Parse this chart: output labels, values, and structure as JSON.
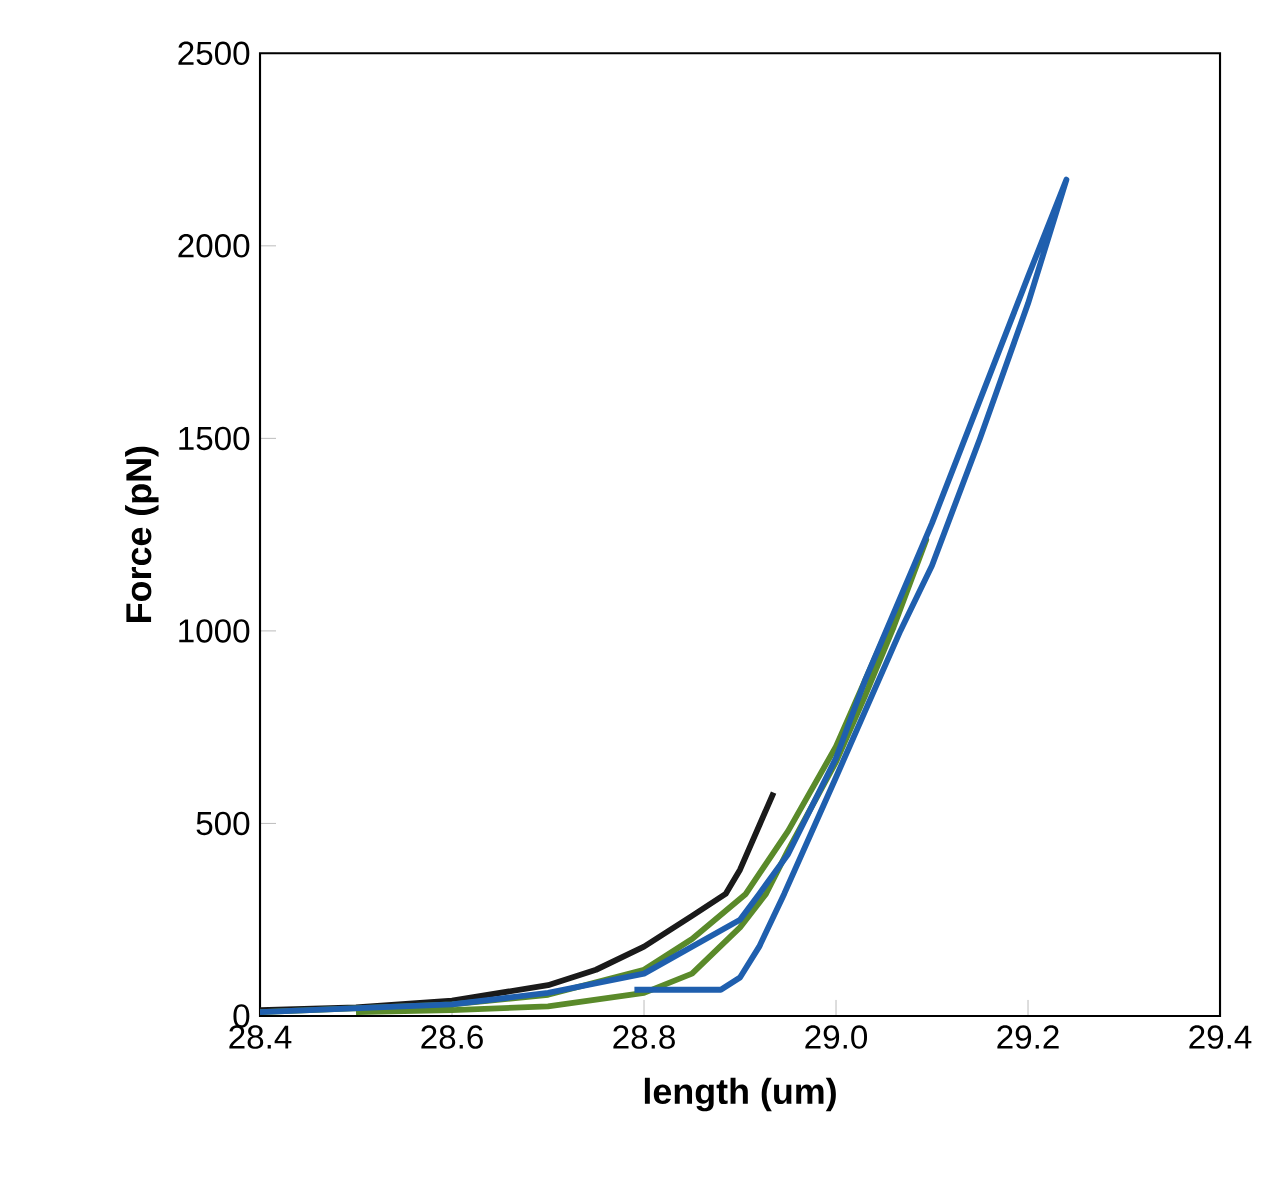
{
  "chart_data": {
    "type": "line",
    "xlabel": "length (um)",
    "ylabel": "Force (pN)",
    "xlim": [
      28.4,
      29.4
    ],
    "ylim": [
      0,
      2500
    ],
    "xticks": [
      {
        "value": 28.4,
        "label": "28.4"
      },
      {
        "value": 28.6,
        "label": "28.6"
      },
      {
        "value": 28.8,
        "label": "28.8"
      },
      {
        "value": 29.0,
        "label": "29.0"
      },
      {
        "value": 29.2,
        "label": "29.2"
      },
      {
        "value": 29.4,
        "label": "29.4"
      }
    ],
    "yticks": [
      0,
      500,
      1000,
      1500,
      2000,
      2500
    ],
    "series": [
      {
        "color": "#1a1a1a",
        "x": [
          28.4,
          28.5,
          28.6,
          28.7,
          28.75,
          28.8,
          28.85,
          28.885,
          28.9,
          28.935
        ],
        "values": [
          15,
          22,
          40,
          80,
          120,
          180,
          260,
          317,
          380,
          580
        ]
      },
      {
        "color": "#5a8a2a",
        "x": [
          28.4,
          28.6,
          28.7,
          28.8,
          28.85,
          28.906,
          28.95,
          29.0,
          29.03,
          29.06,
          29.094,
          29.06,
          29.03,
          29.0,
          28.95,
          28.927,
          28.9,
          28.85,
          28.8,
          28.7,
          28.6,
          28.5
        ],
        "values": [
          10,
          30,
          55,
          120,
          200,
          317,
          480,
          700,
          870,
          1040,
          1237,
          1010,
          830,
          660,
          430,
          317,
          230,
          110,
          60,
          25,
          15,
          10
        ]
      },
      {
        "color": "#1f5fae",
        "x": [
          28.4,
          28.6,
          28.7,
          28.8,
          28.9,
          28.92,
          28.95,
          29.0,
          29.03,
          29.1,
          29.15,
          29.2,
          29.24,
          29.2,
          29.15,
          29.1,
          29.067,
          29.0,
          28.946,
          28.92,
          28.9,
          28.88,
          28.79
        ],
        "values": [
          10,
          30,
          60,
          110,
          250,
          317,
          420,
          670,
          870,
          1280,
          1600,
          1920,
          2172,
          1850,
          1500,
          1170,
          1000,
          620,
          317,
          180,
          100,
          68,
          68
        ]
      }
    ]
  }
}
